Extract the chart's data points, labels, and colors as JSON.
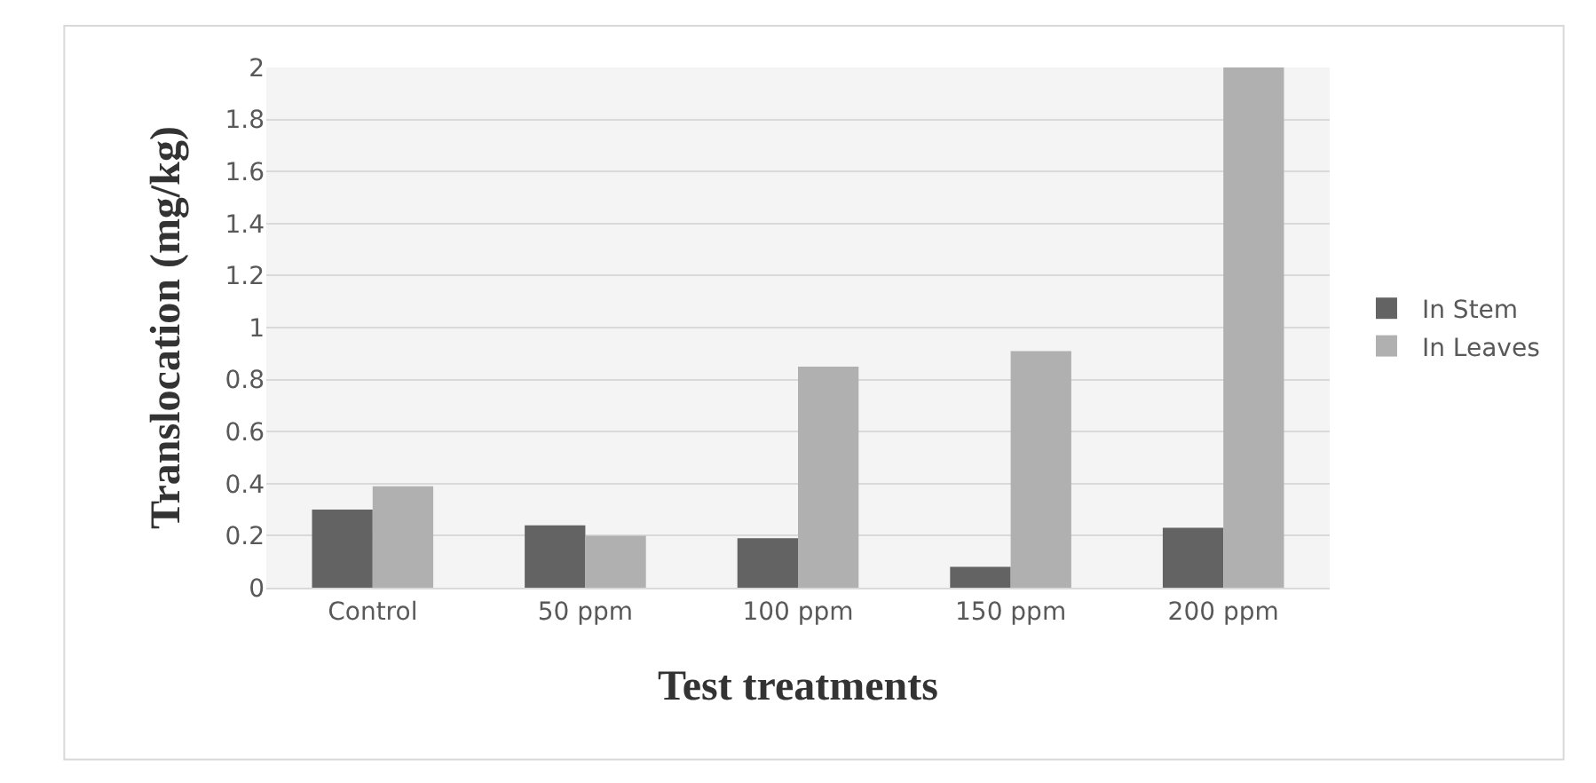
{
  "chart_data": {
    "type": "bar",
    "xlabel": "Test treatments",
    "ylabel": "Translocation (mg/kg)",
    "categories": [
      "Control",
      "50 ppm",
      "100 ppm",
      "150 ppm",
      "200 ppm"
    ],
    "series": [
      {
        "name": "In Stem",
        "color": "#636363",
        "values": [
          0.3,
          0.24,
          0.19,
          0.08,
          0.23
        ]
      },
      {
        "name": "In Leaves",
        "color": "#b0b0b0",
        "values": [
          0.39,
          0.2,
          0.85,
          0.91,
          2.0
        ]
      }
    ],
    "ylim": [
      0,
      2
    ],
    "yticks": [
      0,
      {
        "value": 0.2,
        "label": "0.2"
      },
      {
        "value": 0.4,
        "label": "0.4"
      },
      {
        "value": 0.6,
        "label": "0.6"
      },
      {
        "value": 0.8,
        "label": "0.8"
      },
      1,
      {
        "value": 1.2,
        "label": "1.2"
      },
      {
        "value": 1.4,
        "label": "1.4"
      },
      {
        "value": 1.6,
        "label": "1.6"
      },
      {
        "value": 1.8,
        "label": "1.8"
      },
      2
    ],
    "grid": "y",
    "legend": "right"
  }
}
